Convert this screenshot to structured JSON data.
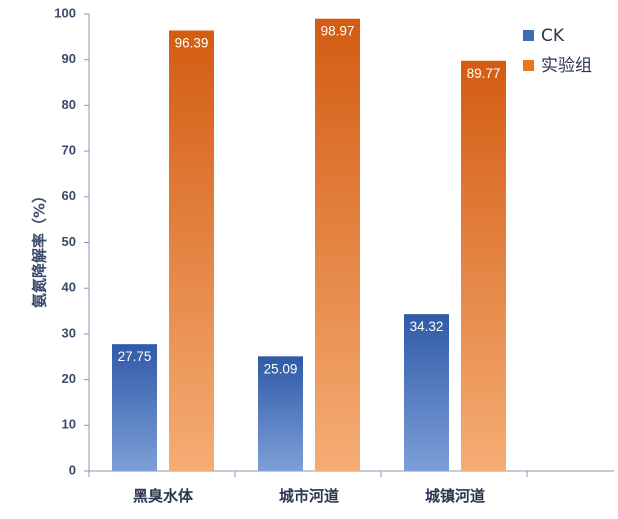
{
  "chart_data": {
    "type": "bar",
    "categories": [
      "黑臭水体",
      "城市河道",
      "城镇河道"
    ],
    "series": [
      {
        "name": "CK",
        "values": [
          27.75,
          25.09,
          34.32
        ],
        "labels": [
          "27.75",
          "25.09",
          "34.32"
        ],
        "color": "#3f6bb5"
      },
      {
        "name": "实验组",
        "values": [
          96.39,
          98.97,
          89.77
        ],
        "labels": [
          "96.39",
          "98.97",
          "89.77"
        ],
        "color": "#e8761e"
      }
    ],
    "ylabel": "氨氮降解率（%）",
    "xlabel": "",
    "ylim": [
      0,
      100
    ],
    "yticks": [
      "0",
      "10",
      "20",
      "30",
      "40",
      "50",
      "60",
      "70",
      "80",
      "90",
      "100"
    ],
    "legend_position": "top-right",
    "grid": false
  }
}
